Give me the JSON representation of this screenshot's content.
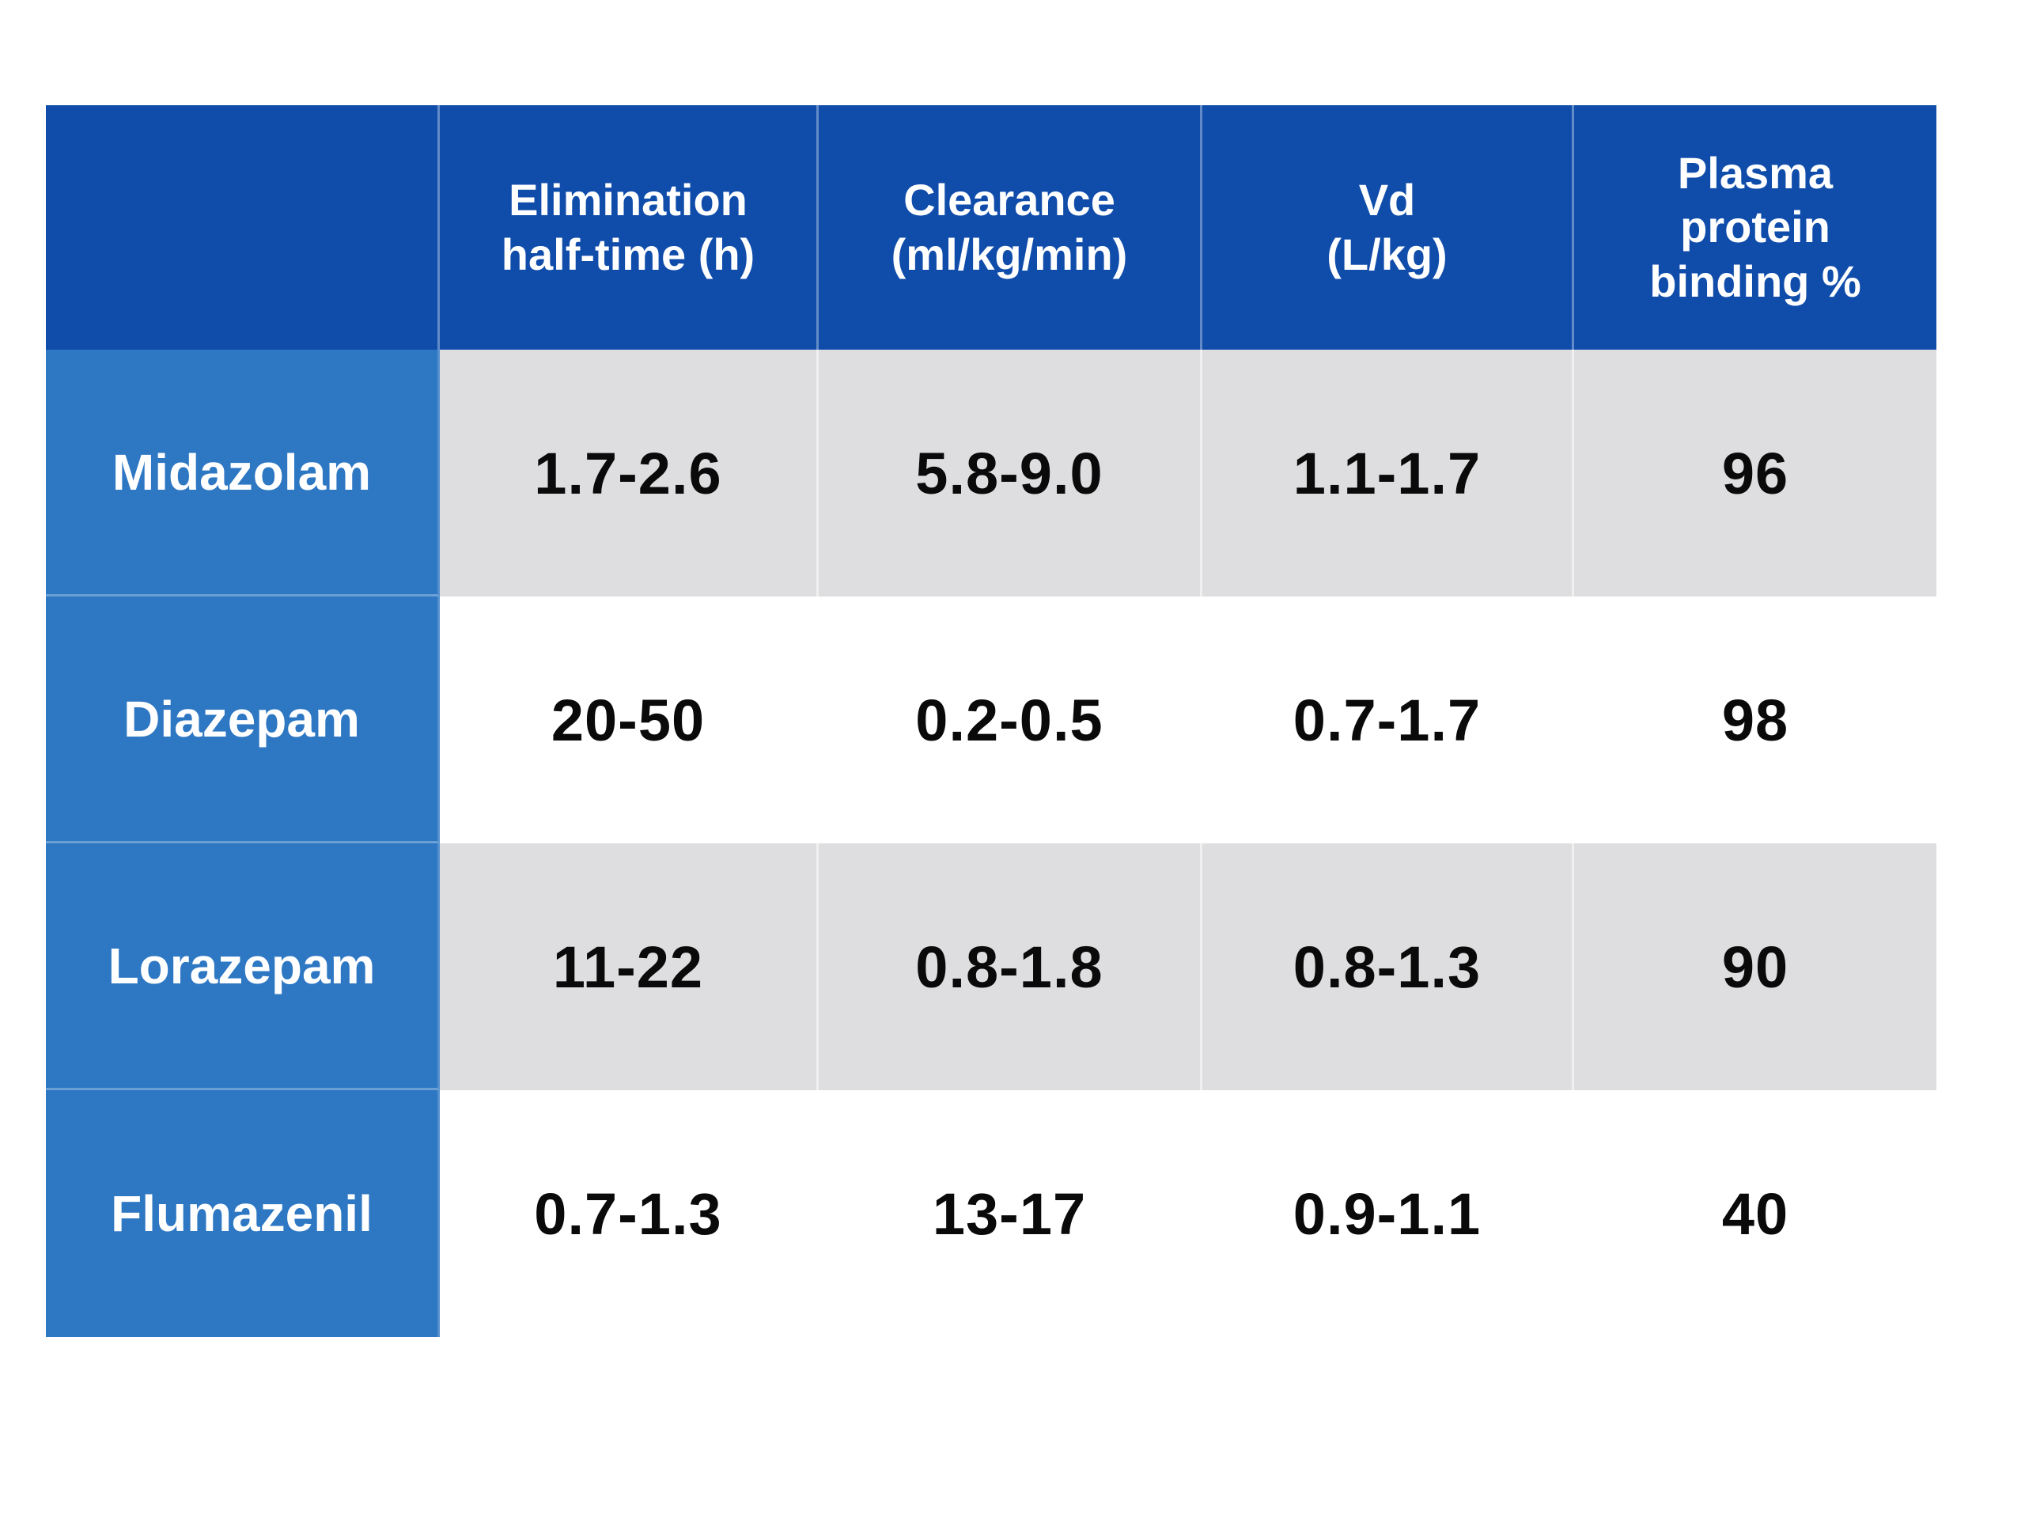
{
  "table": {
    "title": "Benzodiazepine pharmacokinetics table",
    "columns": [
      {
        "label": ""
      },
      {
        "label": "Elimination\nhalf-time (h)"
      },
      {
        "label": "Clearance\n(ml/kg/min)"
      },
      {
        "label": "Vd\n(L/kg)"
      },
      {
        "label": "Plasma\nprotein\nbinding %"
      }
    ],
    "rows": [
      {
        "label": "Midazolam",
        "values": [
          "1.7-2.6",
          "5.8-9.0",
          "1.1-1.7",
          "96"
        ]
      },
      {
        "label": "Diazepam",
        "values": [
          "20-50",
          "0.2-0.5",
          "0.7-1.7",
          "98"
        ]
      },
      {
        "label": "Lorazepam",
        "values": [
          "11-22",
          "0.8-1.8",
          "0.8-1.3",
          "90"
        ]
      },
      {
        "label": "Flumazenil",
        "values": [
          "0.7-1.3",
          "13-17",
          "0.9-1.1",
          "40"
        ]
      }
    ],
    "colors": {
      "header_bg": "#104dab",
      "label_bg": "#2d77c3",
      "alt_row_bg": "#dedee0",
      "white_row_bg": "#ffffff",
      "header_text": "#ffffff",
      "value_text": "#0a0a0a"
    }
  },
  "chart_data": {
    "type": "table",
    "title": "Benzodiazepine pharmacokinetics",
    "column_headers": [
      "",
      "Elimination half-time (h)",
      "Clearance (ml/kg/min)",
      "Vd (L/kg)",
      "Plasma protein binding %"
    ],
    "rows": [
      [
        "Midazolam",
        "1.7-2.6",
        "5.8-9.0",
        "1.1-1.7",
        "96"
      ],
      [
        "Diazepam",
        "20-50",
        "0.2-0.5",
        "0.7-1.7",
        "98"
      ],
      [
        "Lorazepam",
        "11-22",
        "0.8-1.8",
        "0.8-1.3",
        "90"
      ],
      [
        "Flumazenil",
        "0.7-1.3",
        "13-17",
        "0.9-1.1",
        "40"
      ]
    ],
    "layout_hints": {
      "header_row_bg": "#104dab",
      "drug_column_bg": "#2d77c3",
      "zebra_striping": [
        "#dedee0",
        "#ffffff"
      ],
      "text_alignment": "center",
      "grid": "thin light separators between columns"
    }
  }
}
